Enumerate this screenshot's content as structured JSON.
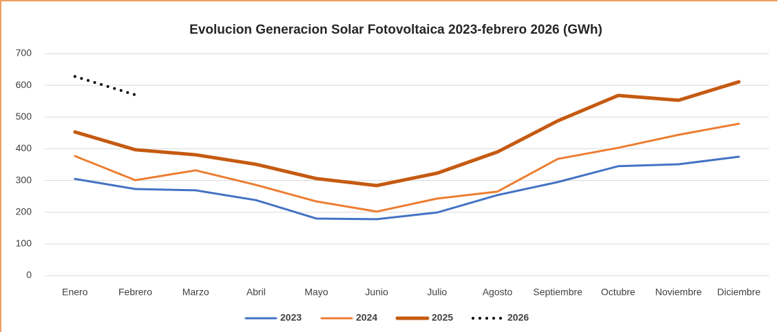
{
  "chart_data": {
    "type": "line",
    "title": "Evolucion Generacion Solar Fotovoltaica 2023-febrero 2026 (GWh)",
    "categories": [
      "Enero",
      "Febrero",
      "Marzo",
      "Abril",
      "Mayo",
      "Junio",
      "Julio",
      "Agosto",
      "Septiembre",
      "Octubre",
      "Noviembre",
      "Diciembre"
    ],
    "series": [
      {
        "name": "2023",
        "color": "#4472c4",
        "width": 3,
        "dotted": false,
        "values": [
          305,
          273,
          269,
          238,
          180,
          178,
          199,
          254,
          295,
          345,
          351,
          375
        ]
      },
      {
        "name": "2024",
        "color": "#ed7d31",
        "width": 3,
        "dotted": false,
        "values": [
          377,
          301,
          332,
          286,
          234,
          202,
          243,
          265,
          368,
          403,
          444,
          479
        ]
      },
      {
        "name": "2025",
        "color": "#c55a11",
        "width": 5,
        "dotted": false,
        "values": [
          453,
          397,
          381,
          351,
          306,
          284,
          323,
          390,
          488,
          568,
          553,
          611
        ]
      },
      {
        "name": "2026",
        "color": "#000000",
        "width": 4,
        "dotted": true,
        "values": [
          628,
          570,
          null,
          null,
          null,
          null,
          null,
          null,
          null,
          null,
          null,
          null
        ]
      }
    ],
    "ylim": [
      0,
      700
    ],
    "yticks": [
      0,
      100,
      200,
      300,
      400,
      500,
      600,
      700
    ],
    "grid": true,
    "legend": "bottom"
  }
}
